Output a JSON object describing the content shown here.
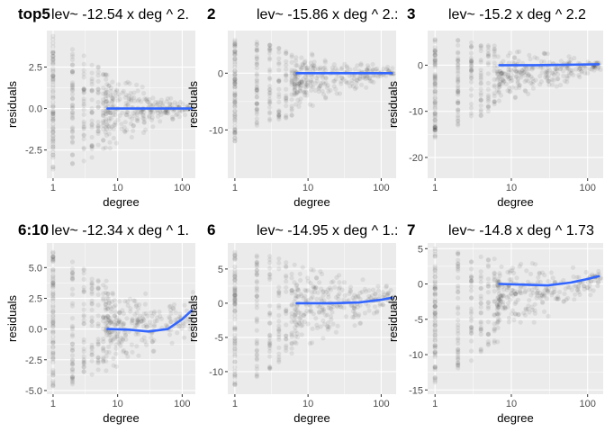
{
  "chart_data": [
    {
      "type": "scatter",
      "tag": "top5",
      "title": "lev~ -12.54  x deg ^ 2.",
      "xlabel": "degree",
      "ylabel": "residuals",
      "x_scale": "log10",
      "xlim": [
        0.8,
        160
      ],
      "ylim": [
        -4.2,
        4.7
      ],
      "xticks": [
        1,
        10,
        100
      ],
      "xtick_labels": [
        "1",
        "10",
        "100"
      ],
      "yticks": [
        -2.5,
        0,
        2.5
      ],
      "ytick_labels": [
        "-2.5",
        "0.0",
        "2.5"
      ],
      "grid": true,
      "point_color": "#000000",
      "smooth_color": "#3366FF",
      "panel_background": "#EBEBEB",
      "scatter_spread": [
        [
          1,
          4.4,
          -3.7
        ],
        [
          2,
          3.6,
          -3.4
        ],
        [
          3,
          3.2,
          -3.2
        ],
        [
          4,
          2.8,
          -3.0
        ],
        [
          5,
          2.6,
          -2.7
        ],
        [
          10,
          1.8,
          -2.2
        ],
        [
          50,
          0.9,
          -0.9
        ],
        [
          130,
          0.3,
          -0.3
        ]
      ],
      "smooth": [
        [
          7,
          0.0
        ],
        [
          20,
          0.0
        ],
        [
          60,
          0.0
        ],
        [
          140,
          0.0
        ]
      ]
    },
    {
      "type": "scatter",
      "tag": "2",
      "title": "lev~ -15.86  x deg ^ 2.:",
      "xlabel": "degree",
      "ylabel": "residuals",
      "x_scale": "log10",
      "xlim": [
        0.8,
        160
      ],
      "ylim": [
        -18.5,
        7.5
      ],
      "xticks": [
        1,
        10,
        100
      ],
      "xtick_labels": [
        "1",
        "10",
        "100"
      ],
      "yticks": [
        -10,
        0
      ],
      "ytick_labels": [
        "-10",
        "0"
      ],
      "grid": true,
      "point_color": "#000000",
      "smooth_color": "#3366FF",
      "panel_background": "#EBEBEB",
      "scatter_spread": [
        [
          1,
          6.5,
          -12
        ],
        [
          2,
          6.0,
          -10
        ],
        [
          3,
          5.5,
          -9.5
        ],
        [
          4,
          5.0,
          -8.5
        ],
        [
          5,
          4.5,
          -8
        ],
        [
          10,
          3.5,
          -6
        ],
        [
          50,
          2.0,
          -3
        ],
        [
          130,
          1.0,
          -1
        ]
      ],
      "smooth": [
        [
          7,
          0.0
        ],
        [
          20,
          0.0
        ],
        [
          60,
          0.0
        ],
        [
          140,
          0.0
        ]
      ]
    },
    {
      "type": "scatter",
      "tag": "3",
      "title": "lev~ -15.2  x deg ^ 2.2",
      "xlabel": "degree",
      "ylabel": "residuals",
      "x_scale": "log10",
      "xlim": [
        0.8,
        160
      ],
      "ylim": [
        -24.5,
        7.5
      ],
      "xticks": [
        1,
        10,
        100
      ],
      "xtick_labels": [
        "1",
        "10",
        "100"
      ],
      "yticks": [
        -20,
        -10,
        0
      ],
      "ytick_labels": [
        "-20",
        "-10",
        "0"
      ],
      "grid": true,
      "point_color": "#000000",
      "smooth_color": "#3366FF",
      "panel_background": "#EBEBEB",
      "scatter_spread": [
        [
          1,
          6.0,
          -16
        ],
        [
          2,
          5.5,
          -13
        ],
        [
          3,
          5.0,
          -12
        ],
        [
          4,
          4.5,
          -11
        ],
        [
          5,
          4.5,
          -10
        ],
        [
          10,
          3.5,
          -8
        ],
        [
          50,
          2.0,
          -4
        ],
        [
          130,
          1.0,
          -1
        ]
      ],
      "smooth": [
        [
          7,
          0.0
        ],
        [
          20,
          0.0
        ],
        [
          60,
          0.1
        ],
        [
          140,
          0.2
        ]
      ]
    },
    {
      "type": "scatter",
      "tag": "6:10",
      "title": "lev~ -12.34  x deg ^ 1.",
      "xlabel": "degree",
      "ylabel": "residuals",
      "x_scale": "log10",
      "xlim": [
        0.8,
        160
      ],
      "ylim": [
        -5.3,
        7.0
      ],
      "xticks": [
        1,
        10,
        100
      ],
      "xtick_labels": [
        "1",
        "10",
        "100"
      ],
      "yticks": [
        -5.0,
        -2.5,
        0,
        2.5,
        5.0
      ],
      "ytick_labels": [
        "-5.0",
        "-2.5",
        "0.0",
        "2.5",
        "5.0"
      ],
      "grid": true,
      "point_color": "#000000",
      "smooth_color": "#3366FF",
      "panel_background": "#EBEBEB",
      "scatter_spread": [
        [
          1,
          6.5,
          -4.8
        ],
        [
          2,
          5.5,
          -4.5
        ],
        [
          3,
          5.0,
          -4.3
        ],
        [
          4,
          4.5,
          -4.0
        ],
        [
          5,
          4.2,
          -3.8
        ],
        [
          10,
          3.5,
          -3.0
        ],
        [
          50,
          2.5,
          -1.5
        ],
        [
          130,
          3.0,
          -0.5
        ]
      ],
      "smooth": [
        [
          7,
          0.0
        ],
        [
          15,
          -0.05
        ],
        [
          30,
          -0.2
        ],
        [
          60,
          0.0
        ],
        [
          100,
          0.8
        ],
        [
          140,
          1.5
        ]
      ]
    },
    {
      "type": "scatter",
      "tag": "6",
      "title": "lev~ -14.95  x deg ^ 1.:",
      "xlabel": "degree",
      "ylabel": "residuals",
      "x_scale": "log10",
      "xlim": [
        0.8,
        160
      ],
      "ylim": [
        -13.3,
        8.8
      ],
      "xticks": [
        1,
        10,
        100
      ],
      "xtick_labels": [
        "1",
        "10",
        "100"
      ],
      "yticks": [
        -10,
        -5,
        0,
        5
      ],
      "ytick_labels": [
        "-10",
        "-5",
        "0",
        "5"
      ],
      "grid": true,
      "point_color": "#000000",
      "smooth_color": "#3366FF",
      "panel_background": "#EBEBEB",
      "scatter_spread": [
        [
          1,
          8.0,
          -12
        ],
        [
          2,
          7.5,
          -11
        ],
        [
          3,
          7.0,
          -10
        ],
        [
          4,
          6.5,
          -9
        ],
        [
          5,
          6.0,
          -8
        ],
        [
          10,
          5.0,
          -6
        ],
        [
          50,
          3.5,
          -3
        ],
        [
          130,
          3.0,
          -1
        ]
      ],
      "smooth": [
        [
          7,
          0.0
        ],
        [
          20,
          0.0
        ],
        [
          50,
          0.1
        ],
        [
          100,
          0.5
        ],
        [
          140,
          0.8
        ]
      ]
    },
    {
      "type": "scatter",
      "tag": "7",
      "title": "lev~ -14.8  x deg ^ 1.73",
      "xlabel": "degree",
      "ylabel": "residuals",
      "x_scale": "log10",
      "xlim": [
        0.8,
        160
      ],
      "ylim": [
        -15.6,
        5.8
      ],
      "xticks": [
        1,
        10,
        100
      ],
      "xtick_labels": [
        "1",
        "10",
        "100"
      ],
      "yticks": [
        -15,
        -10,
        -5,
        0,
        5
      ],
      "ytick_labels": [
        "-15",
        "-10",
        "-5",
        "0",
        "5"
      ],
      "grid": true,
      "point_color": "#000000",
      "smooth_color": "#3366FF",
      "panel_background": "#EBEBEB",
      "scatter_spread": [
        [
          1,
          5.0,
          -14
        ],
        [
          2,
          4.5,
          -12
        ],
        [
          3,
          4.2,
          -11
        ],
        [
          4,
          4.0,
          -10
        ],
        [
          5,
          3.8,
          -9
        ],
        [
          10,
          3.2,
          -7
        ],
        [
          50,
          2.5,
          -4
        ],
        [
          130,
          2.0,
          -1
        ]
      ],
      "smooth": [
        [
          7,
          0.0
        ],
        [
          15,
          -0.1
        ],
        [
          30,
          -0.2
        ],
        [
          60,
          0.2
        ],
        [
          100,
          0.7
        ],
        [
          140,
          1.1
        ]
      ]
    }
  ]
}
